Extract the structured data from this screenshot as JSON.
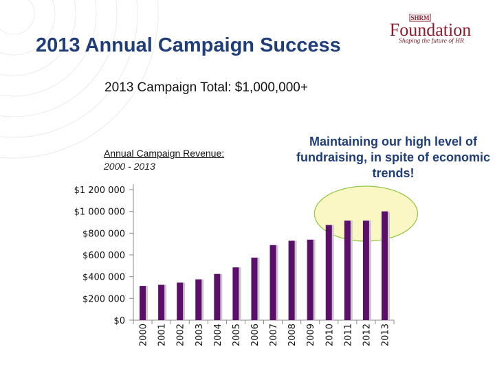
{
  "slide": {
    "title": "2013 Annual Campaign Success",
    "subtitle": "2013 Campaign Total: $1,000,000+",
    "logo_mark": "SHRM",
    "logo_text": "Foundation",
    "logo_tagline": "Shaping the future of HR",
    "callout": "Maintaining our high level of fundraising, in spite of economic trends!"
  },
  "colors": {
    "title": "#1f3e79",
    "bar": "#5c0e6b",
    "bar_shadow": "#c9c9c9",
    "highlight_fill": "#fbf7c4",
    "highlight_stroke": "#8cc63f",
    "logo": "#8a1c2b"
  },
  "chart_data": {
    "type": "bar",
    "title": "Annual Campaign Revenue:",
    "subtitle": "2000 - 2013",
    "categories": [
      "2000",
      "2001",
      "2002",
      "2003",
      "2004",
      "2005",
      "2006",
      "2007",
      "2008",
      "2009",
      "2010",
      "2011",
      "2012",
      "2013"
    ],
    "values": [
      315000,
      325000,
      345000,
      375000,
      425000,
      485000,
      575000,
      690000,
      730000,
      740000,
      875000,
      915000,
      915000,
      1000000
    ],
    "y_ticks": [
      0,
      200000,
      400000,
      600000,
      800000,
      1000000,
      1200000
    ],
    "y_tick_labels": [
      "$0",
      "$200 000",
      "$400 000",
      "$600 000",
      "$800 000",
      "$1 000 000",
      "$1 200 000"
    ],
    "ylim": [
      0,
      1200000
    ],
    "grid": false,
    "legend": false,
    "highlight": {
      "from": "2011",
      "to": "2013",
      "shape": "ellipse"
    }
  }
}
